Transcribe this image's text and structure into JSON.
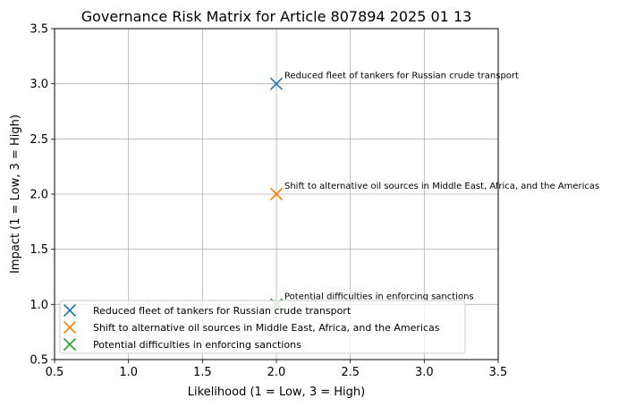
{
  "chart_data": {
    "type": "scatter",
    "title": "Governance Risk Matrix for Article 807894 2025 01 13",
    "xlabel": "Likelihood (1 = Low, 3 = High)",
    "ylabel": "Impact (1 = Low, 3 = High)",
    "xlim": [
      0.5,
      3.5
    ],
    "ylim": [
      0.5,
      3.5
    ],
    "xticks": [
      "0.5",
      "1.0",
      "1.5",
      "2.0",
      "2.5",
      "3.0",
      "3.5"
    ],
    "yticks": [
      "0.5",
      "1.0",
      "1.5",
      "2.0",
      "2.5",
      "3.0",
      "3.5"
    ],
    "grid": true,
    "legend_position": "bottom-left",
    "marker": "x",
    "series": [
      {
        "name": "Reduced fleet of tankers for Russian crude transport",
        "x": 2,
        "y": 3,
        "color": "#1f77b4",
        "annotation": "Reduced fleet of tankers for Russian crude transport"
      },
      {
        "name": "Shift to alternative oil sources in Middle East, Africa, and the Americas",
        "x": 2,
        "y": 2,
        "color": "#ff7f0e",
        "annotation": "Shift to alternative oil sources in Middle East, Africa, and the Americas"
      },
      {
        "name": "Potential difficulties in enforcing sanctions",
        "x": 2,
        "y": 1,
        "color": "#2ca02c",
        "annotation": "Potential difficulties in enforcing sanctions"
      }
    ]
  }
}
